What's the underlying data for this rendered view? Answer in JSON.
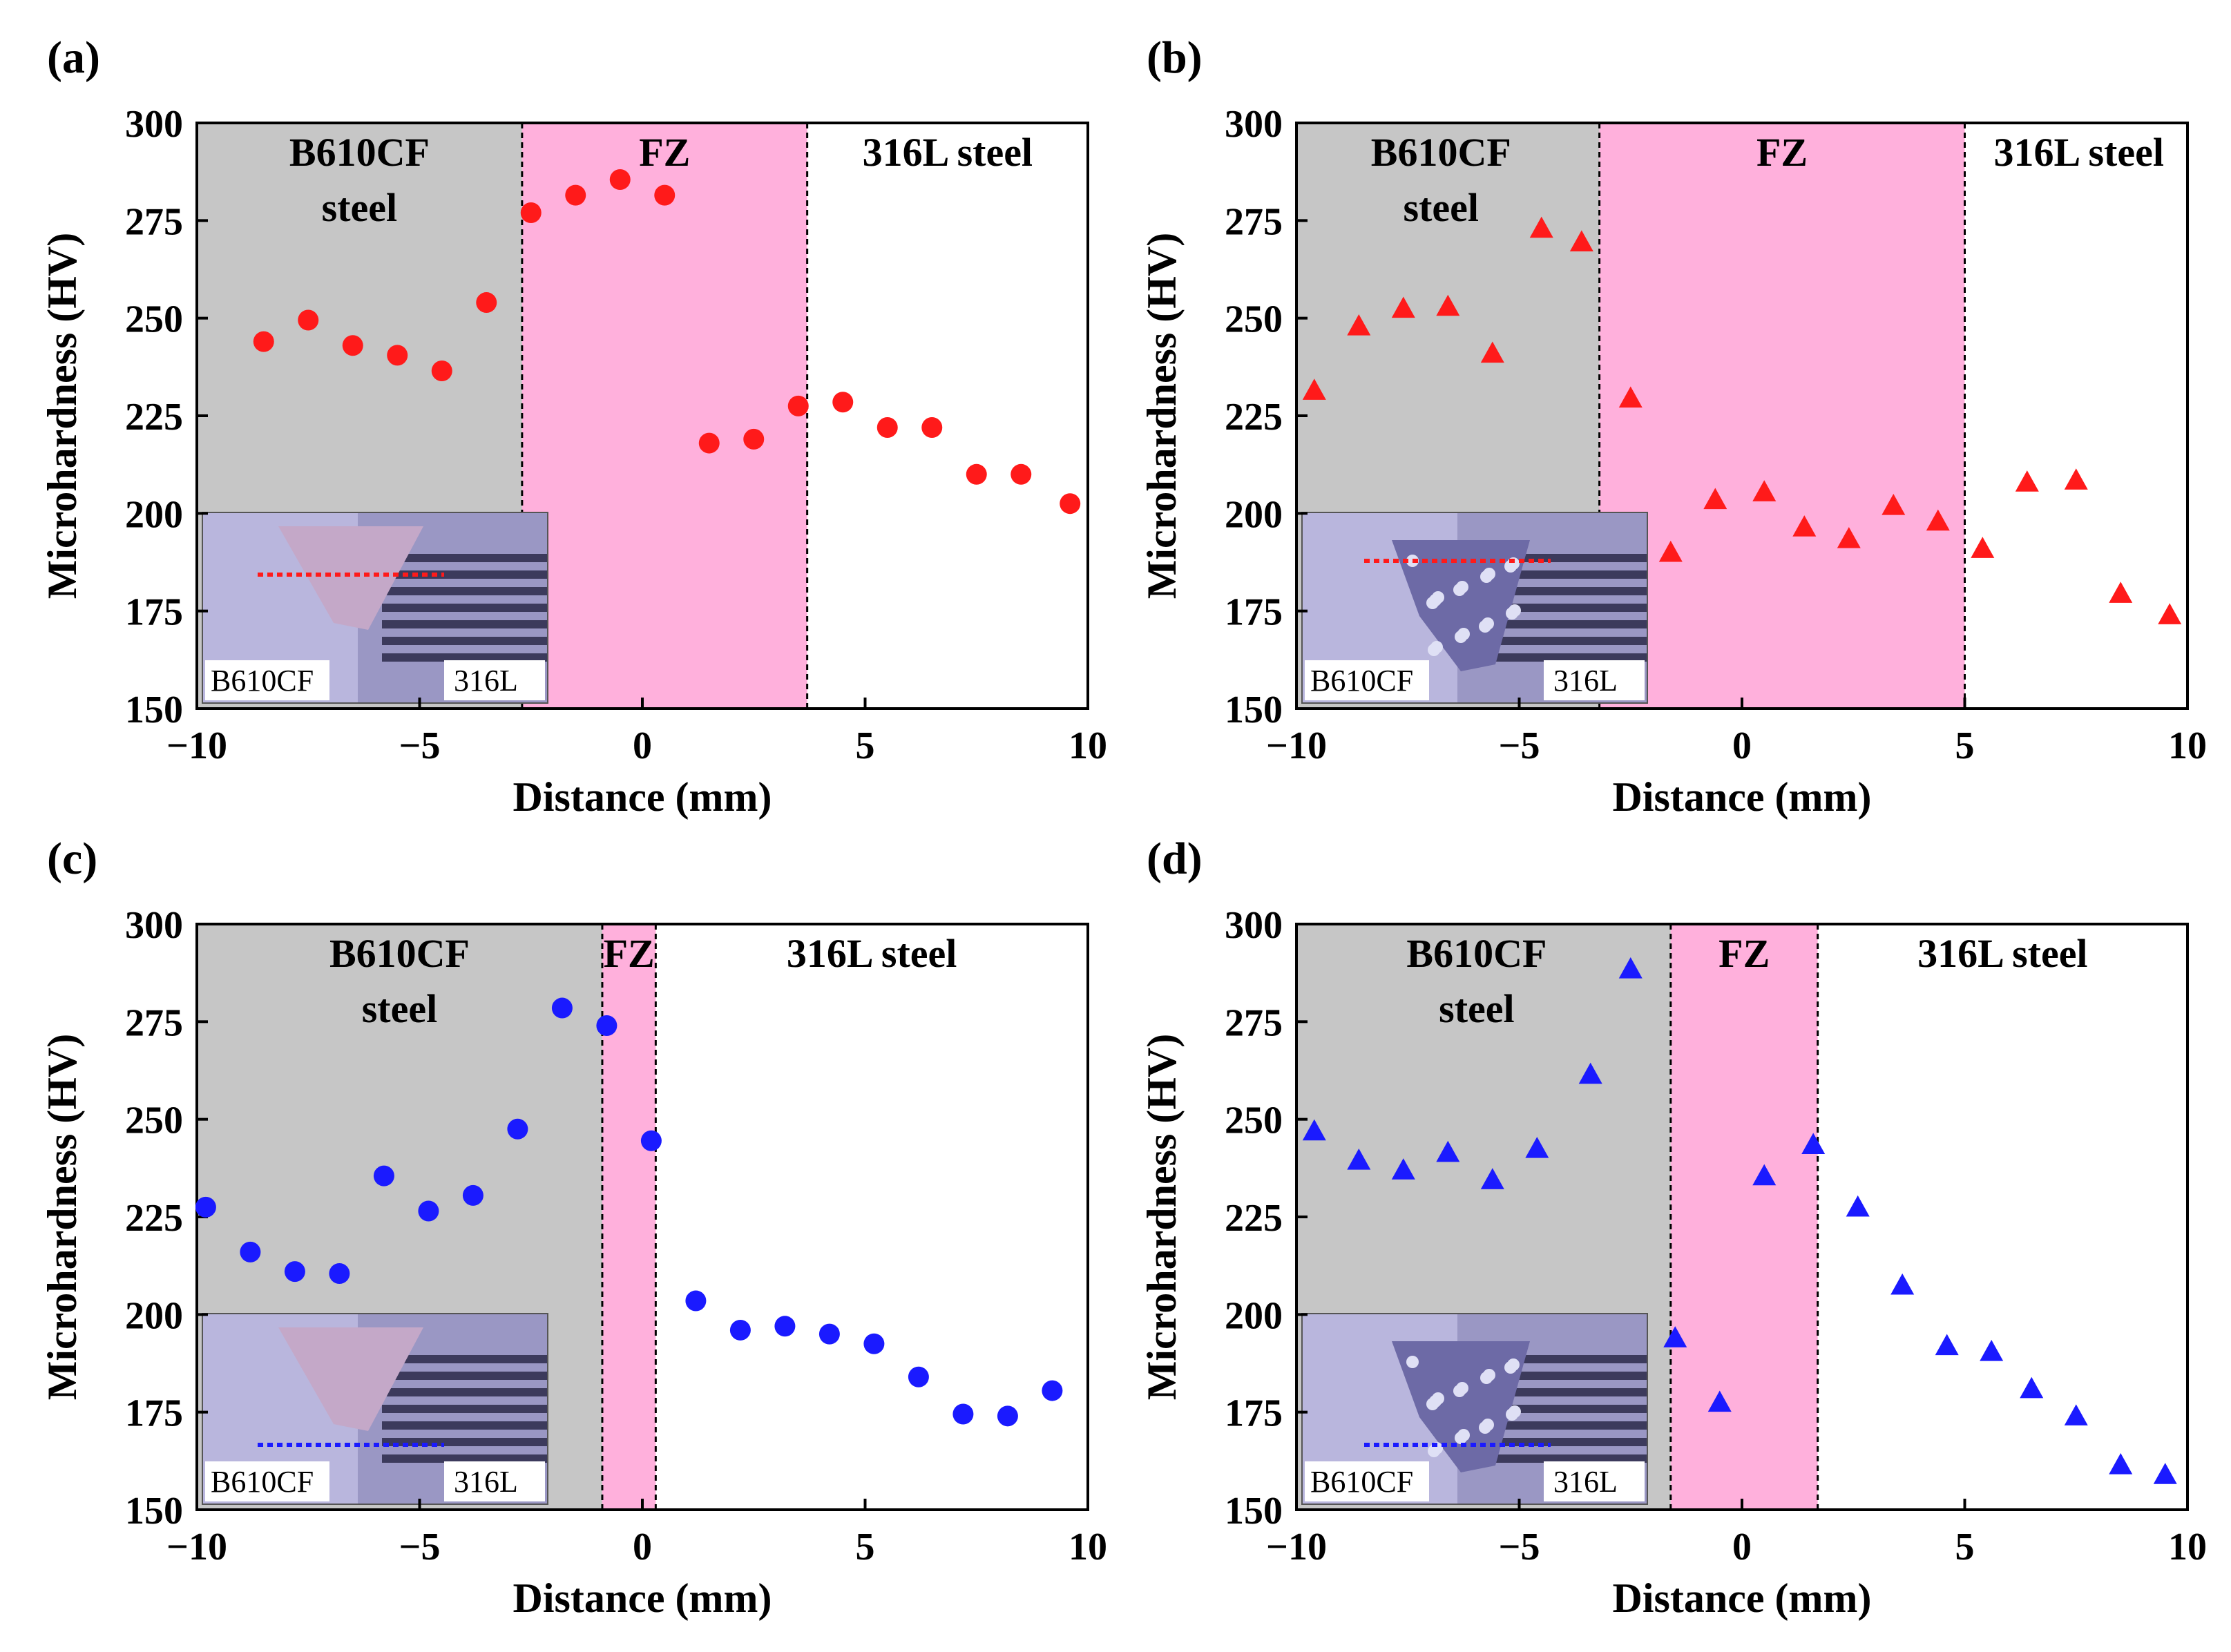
{
  "figure": {
    "xlabel": "Distance (mm)",
    "ylabel": "Microhardness (HV)"
  },
  "colors": {
    "base_metal_bg": "#c6c6c6",
    "fz_bg": "#ffb0dc",
    "red_marker": "#ff1a1a",
    "blue_marker": "#1a1aff"
  },
  "chart_data": [
    {
      "panel": "(a)",
      "type": "scatter",
      "marker": "circle",
      "color": "#ff1a1a",
      "xlabel": "Distance (mm)",
      "ylabel": "Microhardness (HV)",
      "xlim": [
        -10,
        10
      ],
      "ylim": [
        150,
        300
      ],
      "xticks": [
        -10,
        -5,
        0,
        5,
        10
      ],
      "xtick_labels": [
        "−10",
        "−5",
        "0",
        "5",
        "10"
      ],
      "yticks": [
        150,
        175,
        200,
        225,
        250,
        275,
        300
      ],
      "fz_start": -2.7,
      "fz_end": 3.7,
      "regions": {
        "left_line1": "B610CF",
        "left_line2": "steel",
        "middle": "FZ",
        "right": "316L steel"
      },
      "inset": {
        "left_label": "B610CF",
        "right_label": "316L",
        "style": "a"
      },
      "x": [
        -8.5,
        -7.5,
        -6.5,
        -5.5,
        -4.5,
        -3.5,
        -2.5,
        -1.5,
        -0.5,
        0.5,
        1.5,
        2.5,
        3.5,
        4.5,
        5.5,
        6.5,
        7.5,
        8.5,
        9.6
      ],
      "y": [
        244,
        249.5,
        243,
        240.5,
        236.5,
        254,
        277,
        281.5,
        285.5,
        281.5,
        218,
        219,
        227.5,
        228.5,
        222,
        222,
        210,
        210,
        202.5
      ]
    },
    {
      "panel": "(b)",
      "type": "scatter",
      "marker": "triangle",
      "color": "#ff1a1a",
      "xlabel": "Distance (mm)",
      "ylabel": "Microhardness (HV)",
      "xlim": [
        -10,
        10
      ],
      "ylim": [
        150,
        300
      ],
      "xticks": [
        -10,
        -5,
        0,
        5,
        10
      ],
      "xtick_labels": [
        "−10",
        "−5",
        "0",
        "5",
        "10"
      ],
      "yticks": [
        150,
        175,
        200,
        225,
        250,
        275,
        300
      ],
      "fz_start": -3.2,
      "fz_end": 5.0,
      "regions": {
        "left_line1": "B610CF",
        "left_line2": "steel",
        "middle": "FZ",
        "right": "316L steel"
      },
      "inset": {
        "left_label": "B610CF",
        "right_label": "316L",
        "style": "b"
      },
      "x": [
        -9.6,
        -8.6,
        -7.6,
        -6.6,
        -5.6,
        -4.5,
        -3.6,
        -2.5,
        -1.6,
        -0.6,
        0.5,
        1.4,
        2.4,
        3.4,
        4.4,
        5.4,
        6.4,
        7.5,
        8.5,
        9.6
      ],
      "y": [
        231.5,
        248,
        252.5,
        253,
        241,
        273,
        269.5,
        229.5,
        190,
        203.5,
        205.5,
        196.5,
        193.5,
        202,
        198,
        191,
        208,
        208.5,
        179.5,
        174
      ]
    },
    {
      "panel": "(c)",
      "type": "scatter",
      "marker": "circle",
      "color": "#1a1aff",
      "xlabel": "Distance (mm)",
      "ylabel": "Microhardness (HV)",
      "xlim": [
        -10,
        10
      ],
      "ylim": [
        150,
        300
      ],
      "xticks": [
        -10,
        -5,
        0,
        5,
        10
      ],
      "xtick_labels": [
        "−10",
        "−5",
        "0",
        "5",
        "10"
      ],
      "yticks": [
        150,
        175,
        200,
        225,
        250,
        275,
        300
      ],
      "fz_start": -0.9,
      "fz_end": 0.3,
      "regions": {
        "left_line1": "B610CF",
        "left_line2": "steel",
        "middle": "FZ",
        "right": "316L steel"
      },
      "inset": {
        "left_label": "B610CF",
        "right_label": "316L",
        "style": "c"
      },
      "x": [
        -9.8,
        -8.8,
        -7.8,
        -6.8,
        -5.8,
        -4.8,
        -3.8,
        -2.8,
        -1.8,
        -0.8,
        0.2,
        1.2,
        2.2,
        3.2,
        4.2,
        5.2,
        6.2,
        7.2,
        8.2,
        9.2
      ],
      "y": [
        227.5,
        216,
        211,
        210.5,
        235.5,
        226.5,
        230.5,
        247.5,
        278.5,
        274,
        244.5,
        203.5,
        196,
        197,
        195,
        192.5,
        184,
        174.5,
        174,
        180.5
      ]
    },
    {
      "panel": "(d)",
      "type": "scatter",
      "marker": "triangle",
      "color": "#1a1aff",
      "xlabel": "Distance (mm)",
      "ylabel": "Microhardness (HV)",
      "xlim": [
        -10,
        10
      ],
      "ylim": [
        150,
        300
      ],
      "xticks": [
        -10,
        -5,
        0,
        5,
        10
      ],
      "xtick_labels": [
        "−10",
        "−5",
        "0",
        "5",
        "10"
      ],
      "yticks": [
        150,
        175,
        200,
        225,
        250,
        275,
        300
      ],
      "fz_start": -1.6,
      "fz_end": 1.7,
      "regions": {
        "left_line1": "B610CF",
        "left_line2": "steel",
        "middle": "FZ",
        "right": "316L steel"
      },
      "inset": {
        "left_label": "B610CF",
        "right_label": "316L",
        "style": "d"
      },
      "x": [
        -9.6,
        -8.6,
        -7.6,
        -6.6,
        -5.6,
        -4.6,
        -3.4,
        -2.5,
        -1.5,
        -0.5,
        0.5,
        1.6,
        2.6,
        3.6,
        4.6,
        5.6,
        6.5,
        7.5,
        8.5,
        9.5
      ],
      "y": [
        247,
        239.5,
        237,
        241.5,
        234.5,
        242.5,
        261.5,
        288.5,
        194,
        177.5,
        235.5,
        243.5,
        227.5,
        207.5,
        192,
        190.5,
        181,
        174,
        161.5,
        159
      ]
    }
  ]
}
